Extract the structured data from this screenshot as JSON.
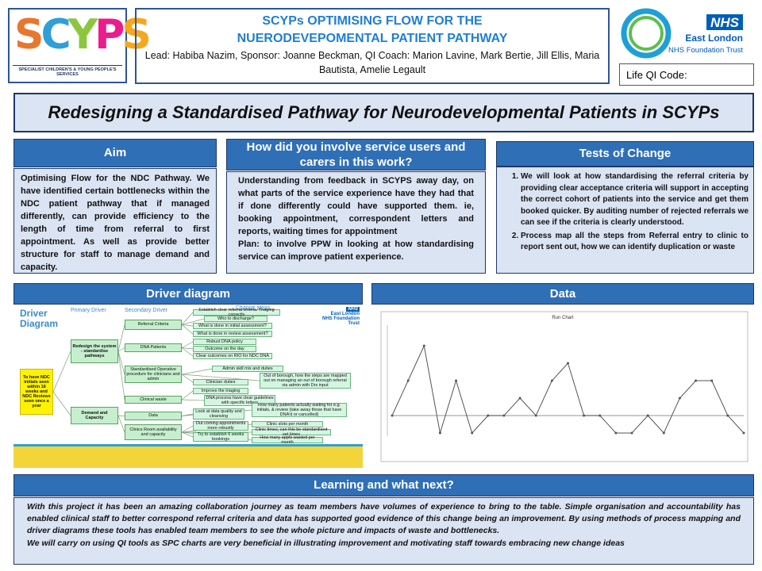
{
  "logo": {
    "letters": [
      "S",
      "C",
      "Y",
      "P",
      "S"
    ],
    "tagline": "SPECIALIST CHILDREN'S & YOUNG PEOPLE'S SERVICES"
  },
  "header": {
    "title": "SCYPs OPTIMISING FLOW FOR THE NUERODEVEPOMENTAL PATIENT PATHWAY",
    "lead": "Lead: Habiba Nazim, Sponsor: Joanne Beckman, QI Coach: Marion Lavine, Mark Bertie, Jill Ellis, Maria Bautista, Amelie Legault"
  },
  "nhs": {
    "badge": "NHS",
    "name": "East London",
    "trust": "NHS Foundation Trust"
  },
  "life_qi": "Life QI Code:",
  "main_title": "Redesigning a Standardised Pathway for Neurodevelopmental Patients in SCYPs",
  "aim": {
    "heading": "Aim",
    "body": "Optimising Flow for the NDC Pathway. We have identified certain bottlenecks within the NDC patient pathway that if managed differently, can provide efficiency to the length of time from referral to first appointment. As well as provide better structure for staff to manage demand and capacity."
  },
  "involve": {
    "heading": "How did you involve service users and carers in this work?",
    "body": "Understanding from feedback in SCYPS away day, on what parts of the service experience have they had that if done differently could have supported them. ie, booking appointment, correspondent letters and reports, waiting times for appointment",
    "plan": "Plan: to involve PPW in looking at how standardising service can improve patient experience."
  },
  "tests": {
    "heading": "Tests of Change",
    "items": [
      "We will look at how standardising the referral criteria by providing clear acceptance criteria will support in accepting the correct cohort of patients into the service and get them booked quicker.  By auditing number of rejected referrals we can see if the criteria is clearly understood.",
      "Process map all the steps from Referral entry to clinic to report sent out, how we can identify duplication or waste"
    ]
  },
  "driver": {
    "heading": "Driver diagram",
    "title": "Driver Diagram",
    "primary_label": "Primary Driver",
    "secondary_label": "Secondary Driver",
    "change_label": "Change ideas",
    "aim": "To have NDC initials seen within 16 weeks and NDC Reviews seen once a year",
    "primary": [
      "Redesign the system - standardise pathways",
      "Demand and Capacity"
    ],
    "secondary": [
      "Referral Criteria",
      "DNA Patients",
      "Standardised Operative procedure for clinicians and admin",
      "Clinical waste",
      "Data",
      "Clinics Room availability and capacity"
    ],
    "changes": [
      "Establish clear referral criteria. Triaging correctly",
      "Who to discharge?",
      "What is done in initial assessment?",
      "What is done in review assessment?",
      "Robust DNA policy",
      "Outcome on the day",
      "Clear outcomes on RIO for NDC DNA",
      "Admin skill mix and duties",
      "Out of borough, how the steps are mapped out on managing an out of borough referral via admin with Drs input",
      "Clinician duties",
      "Improve the triaging",
      "DNA process have clear guidelines with specific letters",
      "How many patients actually waiting for e.g. initials, & review (take away those that have DNA'd or cancelled)",
      "Look at data quality and cleansing",
      "Clinic slots per month",
      "Clinic times, can this be standardised set times",
      "Out coming appointments more robustly",
      "Try to establish 6 weeks bookings",
      "How many appts wasted per month"
    ]
  },
  "data_heading": "Data",
  "chart_data": {
    "type": "line",
    "title": "Run Chart",
    "categories": [
      null,
      null,
      null,
      null,
      null,
      null,
      null,
      null,
      null,
      null,
      null,
      null,
      null,
      null,
      null,
      null,
      null,
      null,
      null,
      null,
      null,
      null,
      null
    ],
    "series": [
      {
        "name": null,
        "color": "#555555",
        "values": [
          1,
          3,
          5,
          0,
          3,
          0,
          1,
          1,
          2,
          1,
          3,
          4,
          1,
          1,
          0,
          0,
          1,
          0,
          2,
          3,
          3,
          1,
          0
        ]
      }
    ],
    "median": 1,
    "median_color": "#aaaaaa",
    "ylim": [
      0,
      6
    ]
  },
  "learning": {
    "heading": "Learning and what next?",
    "body": "With this project it has been an amazing collaboration journey as team members have volumes of experience to bring to the table.  Simple organisation and accountability has enabled clinical staff to better correspond referral criteria and data has supported good evidence of this change being an improvement.  By using methods of process mapping and driver diagrams these tools has enabled team members to see the whole picture and impacts of waste and bottlenecks.",
    "next": "We will carry on using QI tools as SPC charts are very beneficial  in illustrating improvement and motivating staff towards embracing new change ideas"
  }
}
